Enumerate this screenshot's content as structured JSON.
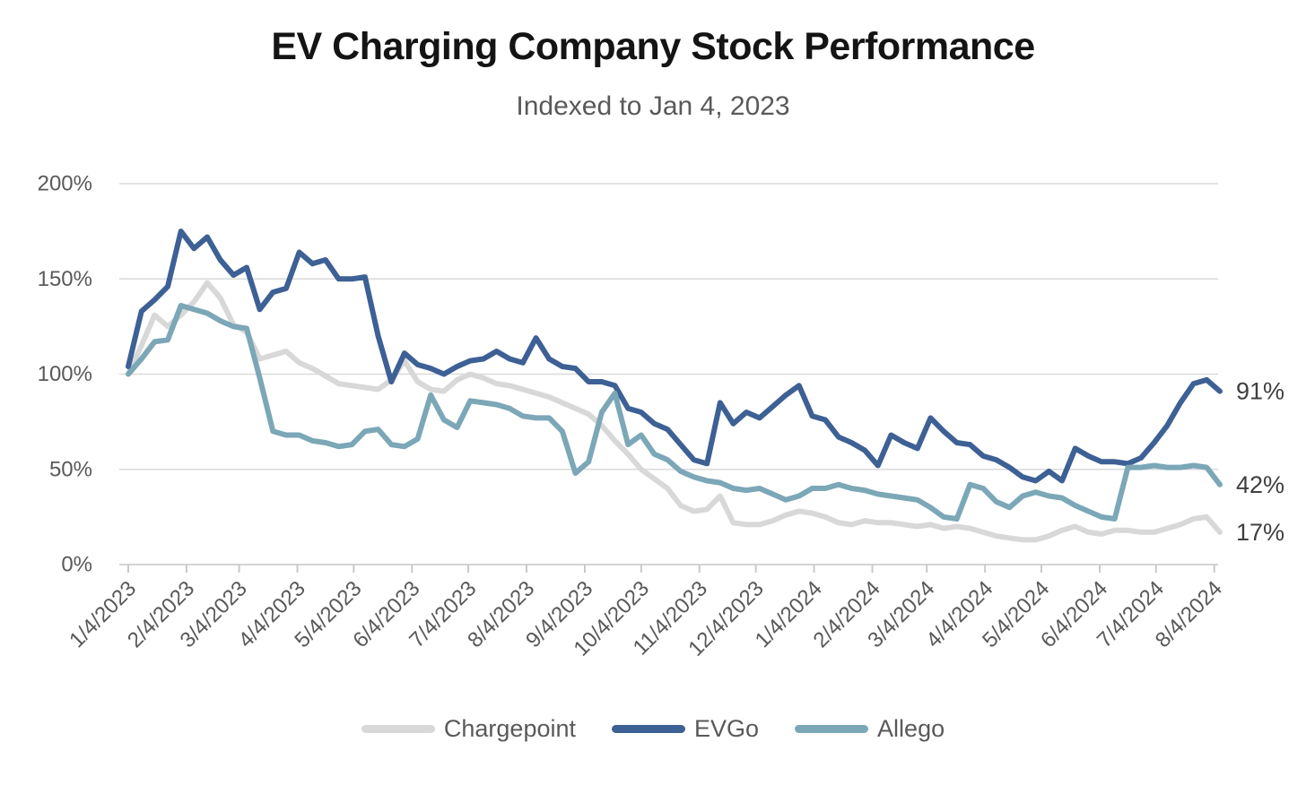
{
  "title": "EV Charging Company Stock Performance",
  "subtitle": "Indexed to Jan 4, 2023",
  "chart_data": {
    "type": "line",
    "title": "EV Charging Company Stock Performance",
    "subtitle": "Indexed to Jan 4, 2023",
    "ylabel": "",
    "xlabel": "",
    "grid": "horizontal",
    "legend_position": "bottom",
    "ylim": [
      0,
      200
    ],
    "y_ticks": [
      {
        "label": "0%",
        "value": 0
      },
      {
        "label": "50%",
        "value": 50
      },
      {
        "label": "100%",
        "value": 100
      },
      {
        "label": "150%",
        "value": 150
      },
      {
        "label": "200%",
        "value": 200
      }
    ],
    "x_tick_labels": [
      "1/4/2023",
      "2/4/2023",
      "3/4/2023",
      "4/4/2023",
      "5/4/2023",
      "6/4/2023",
      "7/4/2023",
      "8/4/2023",
      "9/4/2023",
      "10/4/2023",
      "11/4/2023",
      "12/4/2023",
      "1/4/2024",
      "2/4/2024",
      "3/4/2024",
      "4/4/2024",
      "5/4/2024",
      "6/4/2024",
      "7/4/2024",
      "8/4/2024"
    ],
    "x_tick_day_offsets": [
      0,
      31,
      59,
      90,
      120,
      151,
      181,
      212,
      243,
      273,
      304,
      334,
      365,
      396,
      425,
      456,
      486,
      517,
      547,
      578
    ],
    "x_total_days": 581,
    "point_interval_days": 7,
    "series": [
      {
        "name": "Chargepoint",
        "color": "#d8d8d8",
        "end_label": "17%",
        "values": [
          100,
          115,
          131,
          125,
          131,
          138,
          148,
          140,
          126,
          122,
          108,
          110,
          112,
          106,
          103,
          99,
          95,
          94,
          93,
          92,
          97,
          107,
          96,
          92,
          91,
          97,
          100,
          98,
          95,
          94,
          92,
          90,
          88,
          85,
          82,
          79,
          73,
          65,
          58,
          50,
          45,
          40,
          31,
          28,
          29,
          36,
          22,
          21,
          21,
          23,
          26,
          28,
          27,
          25,
          22,
          21,
          23,
          22,
          22,
          21,
          20,
          21,
          19,
          20,
          19,
          17,
          15,
          14,
          13,
          13,
          15,
          18,
          20,
          17,
          16,
          18,
          18,
          17,
          17,
          19,
          21,
          24,
          25,
          17
        ]
      },
      {
        "name": "EVGo",
        "color": "#3d6095",
        "end_label": "91%",
        "values": [
          104,
          133,
          139,
          146,
          175,
          166,
          172,
          160,
          152,
          156,
          134,
          143,
          145,
          164,
          158,
          160,
          150,
          150,
          151,
          120,
          96,
          111,
          105,
          103,
          100,
          104,
          107,
          108,
          112,
          108,
          106,
          119,
          108,
          104,
          103,
          96,
          96,
          94,
          82,
          80,
          74,
          71,
          63,
          55,
          53,
          85,
          74,
          80,
          77,
          83,
          89,
          94,
          78,
          76,
          67,
          64,
          60,
          52,
          68,
          64,
          61,
          77,
          70,
          64,
          63,
          57,
          55,
          51,
          46,
          44,
          49,
          44,
          61,
          57,
          54,
          54,
          53,
          56,
          64,
          73,
          85,
          95,
          97,
          91
        ]
      },
      {
        "name": "Allego",
        "color": "#7ba7b7",
        "end_label": "42%",
        "values": [
          100,
          108,
          117,
          118,
          136,
          134,
          132,
          128,
          125,
          124,
          98,
          70,
          68,
          68,
          65,
          64,
          62,
          63,
          70,
          71,
          63,
          62,
          66,
          89,
          76,
          72,
          86,
          85,
          84,
          82,
          78,
          77,
          77,
          70,
          48,
          54,
          80,
          90,
          63,
          68,
          58,
          55,
          49,
          46,
          44,
          43,
          40,
          39,
          40,
          37,
          34,
          36,
          40,
          40,
          42,
          40,
          39,
          37,
          36,
          35,
          34,
          30,
          25,
          24,
          42,
          40,
          33,
          30,
          36,
          38,
          36,
          35,
          31,
          28,
          25,
          24,
          51,
          51,
          52,
          51,
          51,
          52,
          51,
          42
        ]
      }
    ],
    "colors": {
      "gridline": "#dadada",
      "axis_line": "#d4d4d4",
      "tick_mark": "#c9c9c9",
      "axis_label": "#595959",
      "end_label": "#3f3f3f",
      "title": "#141414",
      "subtitle": "#595959"
    }
  },
  "legend": {
    "items": [
      "Chargepoint",
      "EVGo",
      "Allego"
    ]
  }
}
